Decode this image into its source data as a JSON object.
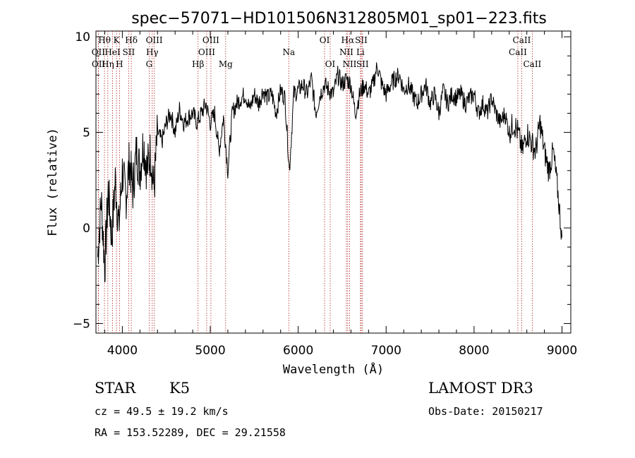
{
  "chart_data": {
    "type": "line",
    "title": "spec−57071−HD101506N312805M01_sp01−223.fits",
    "xlabel": "Wavelength (Å)",
    "ylabel": "Flux (relative)",
    "xlim": [
      3700,
      9100
    ],
    "ylim": [
      -5.5,
      10.3
    ],
    "x_ticks": [
      4000,
      5000,
      6000,
      7000,
      8000,
      9000
    ],
    "y_ticks": [
      -5,
      0,
      5,
      10
    ],
    "x_tick_labels": [
      "4000",
      "5000",
      "6000",
      "7000",
      "8000",
      "9000"
    ],
    "y_tick_labels": [
      "−5",
      "0",
      "5",
      "10"
    ],
    "series": [
      {
        "name": "spectrum",
        "x": [
          3720,
          3760,
          3800,
          3840,
          3880,
          3920,
          3960,
          4000,
          4040,
          4080,
          4120,
          4160,
          4200,
          4240,
          4280,
          4320,
          4360,
          4400,
          4450,
          4500,
          4550,
          4600,
          4650,
          4700,
          4750,
          4800,
          4850,
          4900,
          4950,
          5000,
          5050,
          5100,
          5150,
          5200,
          5250,
          5300,
          5350,
          5400,
          5450,
          5500,
          5550,
          5600,
          5650,
          5700,
          5750,
          5800,
          5850,
          5900,
          5950,
          6000,
          6050,
          6100,
          6150,
          6200,
          6250,
          6300,
          6350,
          6400,
          6450,
          6500,
          6550,
          6600,
          6650,
          6700,
          6750,
          6800,
          6850,
          6900,
          6950,
          7000,
          7050,
          7100,
          7150,
          7200,
          7250,
          7300,
          7350,
          7400,
          7450,
          7500,
          7550,
          7600,
          7650,
          7700,
          7750,
          7800,
          7850,
          7900,
          7950,
          8000,
          8050,
          8100,
          8150,
          8200,
          8250,
          8300,
          8350,
          8400,
          8450,
          8500,
          8550,
          8600,
          8650,
          8700,
          8750,
          8800,
          8850,
          8900,
          8950,
          9000
        ],
        "values": [
          -1.5,
          1.5,
          -2.0,
          2.0,
          -0.5,
          2.5,
          0.0,
          3.0,
          1.5,
          3.5,
          2.0,
          4.0,
          3.0,
          4.5,
          3.0,
          4.0,
          2.0,
          5.0,
          4.5,
          5.5,
          6.0,
          5.0,
          6.2,
          5.5,
          5.8,
          6.0,
          5.5,
          6.0,
          6.5,
          5.5,
          6.0,
          4.0,
          5.8,
          3.0,
          6.0,
          6.5,
          6.8,
          7.0,
          6.2,
          7.0,
          6.5,
          7.2,
          6.8,
          7.0,
          6.0,
          7.2,
          6.8,
          3.0,
          7.0,
          7.2,
          7.5,
          7.0,
          7.8,
          6.0,
          7.0,
          7.5,
          7.2,
          7.0,
          8.0,
          7.5,
          7.8,
          7.5,
          6.0,
          7.0,
          7.5,
          7.0,
          7.5,
          8.5,
          7.5,
          7.0,
          7.5,
          7.8,
          8.0,
          7.2,
          7.5,
          7.0,
          6.5,
          7.0,
          7.5,
          6.5,
          7.0,
          6.0,
          7.2,
          6.5,
          7.0,
          6.8,
          7.0,
          6.5,
          6.8,
          7.0,
          6.0,
          6.5,
          6.0,
          6.8,
          6.0,
          5.5,
          6.0,
          5.0,
          5.5,
          5.0,
          4.0,
          5.0,
          4.5,
          4.0,
          5.5,
          4.0,
          3.0,
          4.0,
          2.0,
          -0.5
        ]
      }
    ],
    "lines": [
      {
        "label": "Hθ",
        "wavelength": 3797,
        "row": 0
      },
      {
        "label": "OII",
        "wavelength": 3727,
        "row": 1
      },
      {
        "label": "OII",
        "wavelength": 3729,
        "row": 2
      },
      {
        "label": "K",
        "wavelength": 3934,
        "row": 0
      },
      {
        "label": "HeI",
        "wavelength": 3889,
        "row": 1
      },
      {
        "label": "Hη",
        "wavelength": 3835,
        "row": 2
      },
      {
        "label": "Hδ",
        "wavelength": 4102,
        "row": 0
      },
      {
        "label": "SII",
        "wavelength": 4072,
        "row": 1
      },
      {
        "label": "H",
        "wavelength": 3968,
        "row": 2
      },
      {
        "label": "OIII",
        "wavelength": 4363,
        "row": 0
      },
      {
        "label": "Hγ",
        "wavelength": 4340,
        "row": 1
      },
      {
        "label": "G",
        "wavelength": 4305,
        "row": 2
      },
      {
        "label": "OIII",
        "wavelength": 5007,
        "row": 0
      },
      {
        "label": "OIII",
        "wavelength": 4959,
        "row": 1
      },
      {
        "label": "Hβ",
        "wavelength": 4861,
        "row": 2
      },
      {
        "label": "Mg",
        "wavelength": 5175,
        "row": 2
      },
      {
        "label": "Na",
        "wavelength": 5893,
        "row": 1
      },
      {
        "label": "OI",
        "wavelength": 6300,
        "row": 0
      },
      {
        "label": "OI",
        "wavelength": 6364,
        "row": 2
      },
      {
        "label": "Hα",
        "wavelength": 6563,
        "row": 0
      },
      {
        "label": "NII",
        "wavelength": 6548,
        "row": 1
      },
      {
        "label": "NII",
        "wavelength": 6584,
        "row": 2
      },
      {
        "label": "SII",
        "wavelength": 6717,
        "row": 0
      },
      {
        "label": "Li",
        "wavelength": 6708,
        "row": 1
      },
      {
        "label": "SII",
        "wavelength": 6731,
        "row": 2
      },
      {
        "label": "CaII",
        "wavelength": 8542,
        "row": 0
      },
      {
        "label": "CaII",
        "wavelength": 8498,
        "row": 1
      },
      {
        "label": "CaII",
        "wavelength": 8662,
        "row": 2
      }
    ],
    "line_color": "#b22222",
    "spectrum_color": "#000000"
  },
  "info": {
    "object_class": "STAR",
    "subclass": "K5",
    "survey": "LAMOST DR3",
    "cz": "cz = 49.5 ± 19.2 km/s",
    "obs_date": "Obs-Date: 20150217",
    "coords": "RA = 153.52289, DEC =  29.21558"
  }
}
